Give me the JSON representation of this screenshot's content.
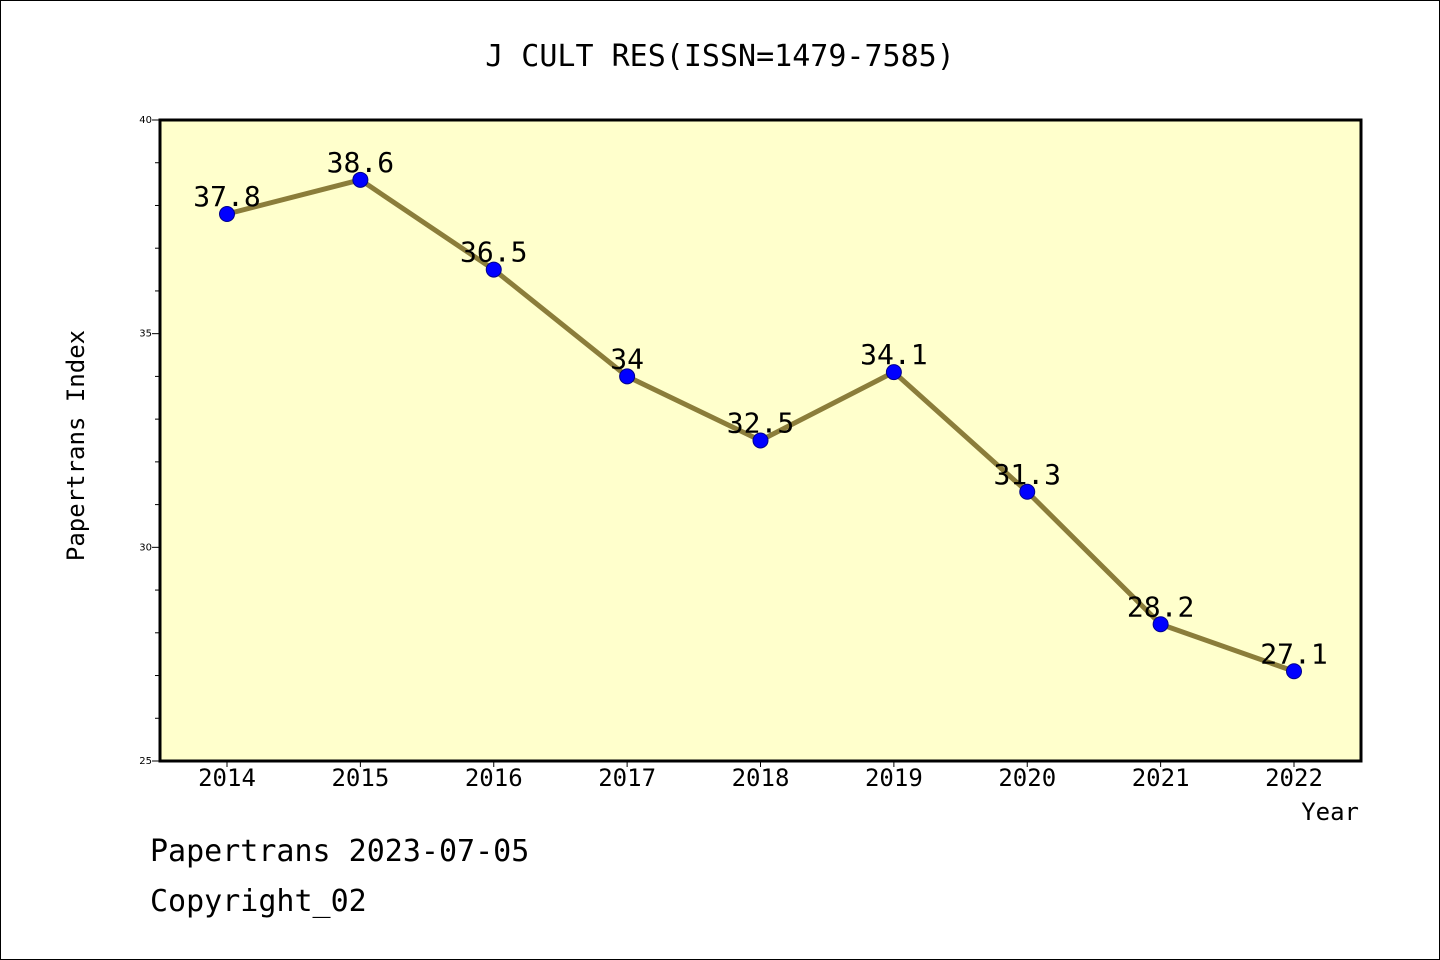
{
  "footer": {
    "line1": "Papertrans 2023-07-05",
    "line2": "Copyright_02"
  },
  "chart_data": {
    "type": "line",
    "title": "J CULT RES(ISSN=1479-7585)",
    "xlabel": "Year",
    "ylabel": "Papertrans Index",
    "x": [
      "2014",
      "2015",
      "2016",
      "2017",
      "2018",
      "2019",
      "2020",
      "2021",
      "2022"
    ],
    "series": [
      {
        "values": [
          37.8,
          38.6,
          36.5,
          34,
          32.5,
          34.1,
          31.3,
          28.2,
          27.1
        ],
        "labels": [
          "37.8",
          "38.6",
          "36.5",
          "34",
          "32.5",
          "34.1",
          "31.3",
          "28.2",
          "27.1"
        ]
      }
    ],
    "ylim": [
      25,
      40
    ],
    "yticks": [
      "25",
      "30",
      "35",
      "40"
    ],
    "grid": false,
    "colors": {
      "plot_background": "#ffffcc",
      "line": "#8b7d3a",
      "marker": "#0000ff"
    }
  }
}
